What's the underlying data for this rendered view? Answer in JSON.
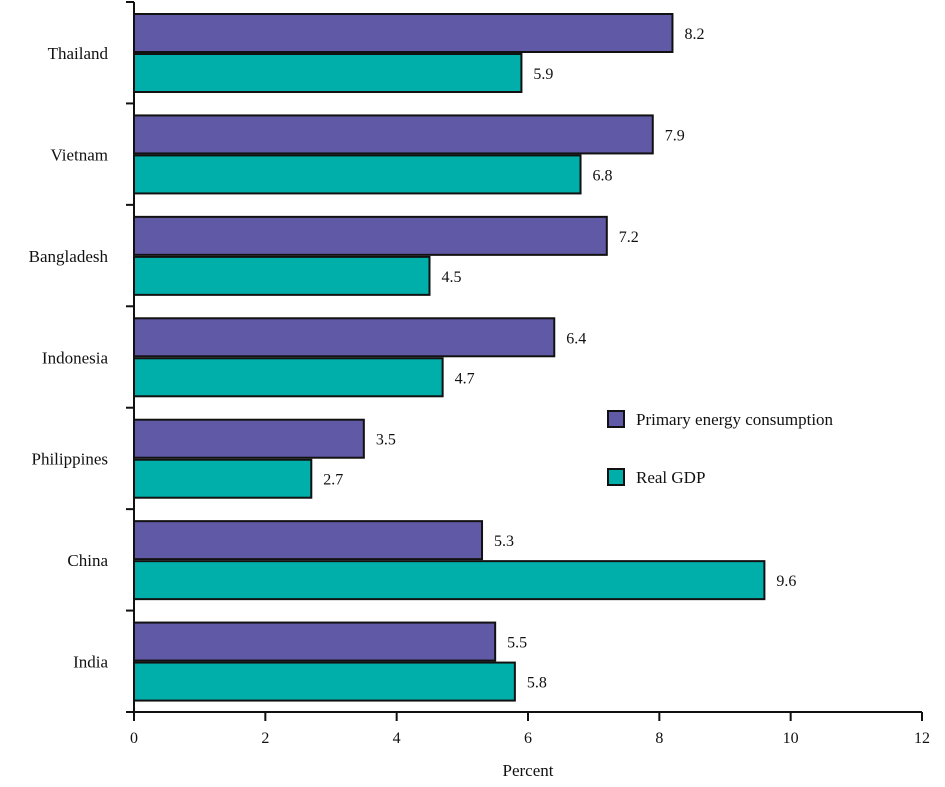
{
  "chart_data": {
    "type": "bar",
    "orientation": "horizontal",
    "categories": [
      "Thailand",
      "Vietnam",
      "Bangladesh",
      "Indonesia",
      "Philippines",
      "China",
      "India"
    ],
    "series": [
      {
        "name": "Primary energy consumption",
        "color": "#6059a6",
        "values": [
          8.2,
          7.9,
          7.2,
          6.4,
          3.5,
          5.3,
          5.5
        ],
        "labels": [
          "8.2",
          "7.9",
          "7.2",
          "6.4",
          "3.5",
          "5.3",
          "5.5"
        ]
      },
      {
        "name": "Real GDP",
        "color": "#00afaa",
        "values": [
          5.9,
          6.8,
          4.5,
          4.7,
          2.7,
          9.6,
          5.8
        ],
        "labels": [
          "5.9",
          "6.8",
          "4.5",
          "4.7",
          "2.7",
          "9.6",
          "5.8"
        ]
      }
    ],
    "xlabel": "Percent",
    "ylabel": "",
    "xlim": [
      0,
      12
    ],
    "xticks": [
      "0",
      "2",
      "4",
      "6",
      "8",
      "10",
      "12"
    ],
    "grid": false,
    "legend_position": "right"
  }
}
